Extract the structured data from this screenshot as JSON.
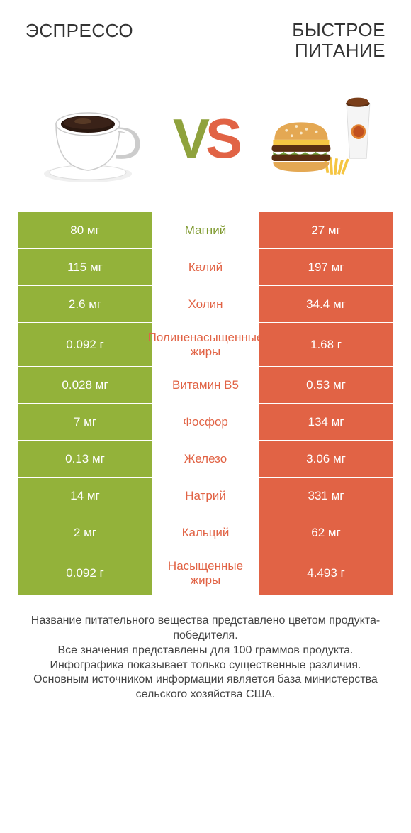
{
  "titles": {
    "left": "ЭСПРЕССО",
    "right_line1": "БЫСТРОЕ",
    "right_line2": "ПИТАНИЕ"
  },
  "vs": {
    "v": "V",
    "s": "S"
  },
  "colors": {
    "green": "#93b23a",
    "orange": "#e16345",
    "green_text": "#7f9a2f",
    "orange_text": "#e16345",
    "background": "#ffffff"
  },
  "rows": [
    {
      "left": "80 мг",
      "mid": "Магний",
      "right": "27 мг",
      "winner": "left",
      "tall": false
    },
    {
      "left": "115 мг",
      "mid": "Калий",
      "right": "197 мг",
      "winner": "right",
      "tall": false
    },
    {
      "left": "2.6 мг",
      "mid": "Холин",
      "right": "34.4 мг",
      "winner": "right",
      "tall": false
    },
    {
      "left": "0.092 г",
      "mid": "Полиненасыщенные жиры",
      "right": "1.68 г",
      "winner": "right",
      "tall": true
    },
    {
      "left": "0.028 мг",
      "mid": "Витамин B5",
      "right": "0.53 мг",
      "winner": "right",
      "tall": false
    },
    {
      "left": "7 мг",
      "mid": "Фосфор",
      "right": "134 мг",
      "winner": "right",
      "tall": false
    },
    {
      "left": "0.13 мг",
      "mid": "Железо",
      "right": "3.06 мг",
      "winner": "right",
      "tall": false
    },
    {
      "left": "14 мг",
      "mid": "Натрий",
      "right": "331 мг",
      "winner": "right",
      "tall": false
    },
    {
      "left": "2 мг",
      "mid": "Кальций",
      "right": "62 мг",
      "winner": "right",
      "tall": false
    },
    {
      "left": "0.092 г",
      "mid": "Насыщенные жиры",
      "right": "4.493 г",
      "winner": "right",
      "tall": true
    }
  ],
  "footer": {
    "l1": "Название питательного вещества представлено цветом продукта-победителя.",
    "l2": "Все значения представлены для 100 граммов продукта.",
    "l3": "Инфографика показывает только существенные различия.",
    "l4": "Основным источником информации является база министерства сельского хозяйства США."
  }
}
